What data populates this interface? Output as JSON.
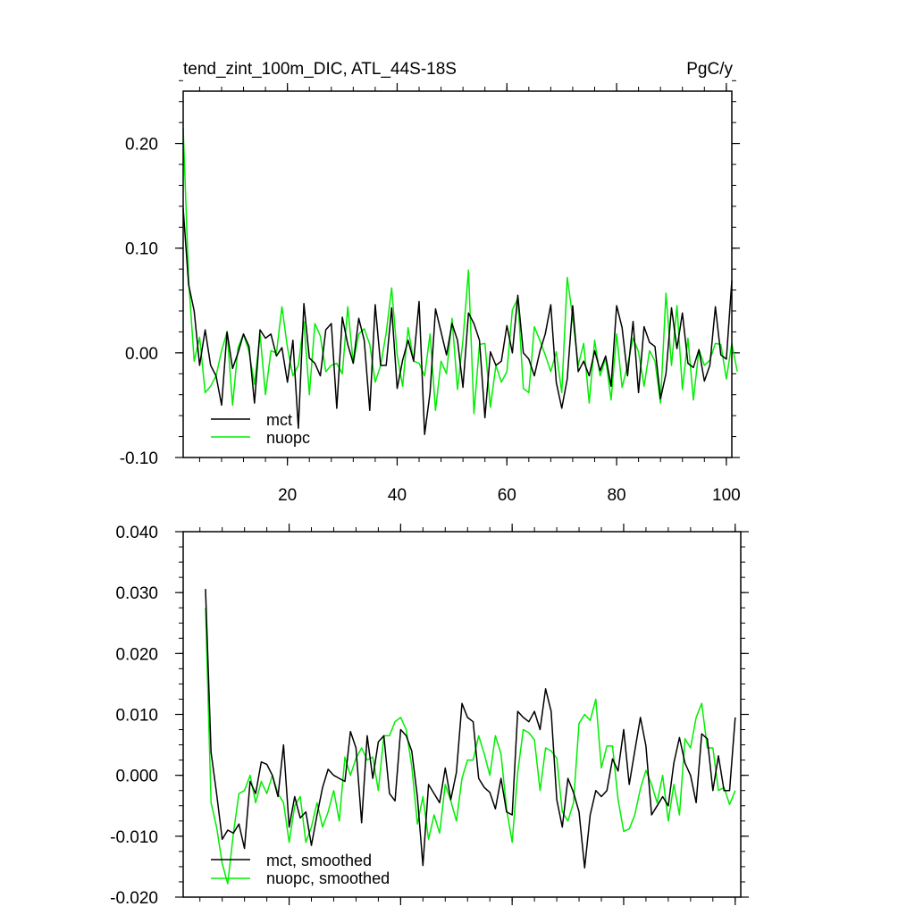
{
  "chart_data": [
    {
      "type": "line",
      "title": "tend_zint_100m_DIC, ATL_44S-18S",
      "units": "PgC/y",
      "xlim": [
        1,
        101
      ],
      "ylim": [
        -0.1,
        0.25
      ],
      "x_ticks": [
        20,
        40,
        60,
        80,
        100
      ],
      "x_tick_labels": [
        "20",
        "40",
        "60",
        "80",
        "100"
      ],
      "y_ticks": [
        -0.1,
        0.0,
        0.1,
        0.2
      ],
      "y_tick_labels": [
        "-0.10",
        "0.00",
        "0.10",
        "0.20"
      ],
      "legend_position": "bottom-left",
      "x_start": 1,
      "series": [
        {
          "name": "mct",
          "color": "#000000",
          "values": [
            0.138,
            0.065,
            0.04,
            -0.012,
            0.022,
            -0.012,
            -0.022,
            -0.05,
            0.02,
            -0.015,
            0.0,
            0.018,
            0.006,
            -0.048,
            0.022,
            0.014,
            0.018,
            -0.003,
            0.005,
            -0.028,
            0.012,
            -0.072,
            0.047,
            -0.005,
            -0.01,
            -0.022,
            0.022,
            0.028,
            -0.053,
            0.034,
            0.008,
            -0.01,
            0.033,
            0.012,
            -0.055,
            0.046,
            -0.012,
            -0.012,
            0.043,
            -0.034,
            -0.007,
            0.012,
            -0.008,
            0.049,
            -0.078,
            -0.038,
            0.042,
            0.02,
            -0.002,
            0.028,
            0.012,
            -0.033,
            0.038,
            0.028,
            0.012,
            -0.062,
            0.001,
            -0.012,
            -0.008,
            0.026,
            0.0,
            0.055,
            0.0,
            -0.006,
            -0.022,
            0.001,
            0.018,
            0.046,
            -0.028,
            -0.053,
            -0.025,
            0.045,
            -0.018,
            -0.008,
            -0.022,
            0.002,
            -0.017,
            -0.003,
            -0.032,
            0.045,
            0.024,
            -0.022,
            0.03,
            -0.038,
            0.025,
            0.01,
            0.006,
            -0.044,
            -0.02,
            0.043,
            0.004,
            0.038,
            -0.01,
            -0.014,
            0.003,
            -0.027,
            -0.012,
            0.044,
            -0.002,
            -0.006,
            0.069
          ]
        },
        {
          "name": "nuopc",
          "color": "#00ee00",
          "values": [
            0.215,
            0.07,
            -0.008,
            0.015,
            -0.038,
            -0.032,
            -0.022,
            0.002,
            0.02,
            -0.05,
            0.005,
            0.018,
            0.001,
            -0.03,
            0.018,
            -0.04,
            0.002,
            0.0,
            0.044,
            0.005,
            -0.022,
            -0.012,
            0.03,
            -0.04,
            0.028,
            0.016,
            -0.018,
            -0.012,
            -0.01,
            -0.02,
            0.044,
            -0.01,
            0.018,
            0.023,
            0.008,
            -0.028,
            -0.012,
            0.019,
            0.062,
            -0.002,
            -0.032,
            0.024,
            -0.008,
            -0.01,
            -0.022,
            0.018,
            -0.055,
            -0.008,
            -0.02,
            0.033,
            -0.035,
            0.012,
            0.079,
            -0.058,
            0.008,
            0.009,
            -0.052,
            -0.012,
            -0.028,
            -0.018,
            0.041,
            0.052,
            -0.034,
            -0.038,
            0.025,
            0.012,
            -0.002,
            -0.018,
            0.001,
            -0.038,
            0.072,
            0.034,
            -0.012,
            0.009,
            -0.048,
            0.012,
            -0.022,
            -0.005,
            -0.045,
            0.018,
            -0.033,
            -0.012,
            0.014,
            0.001,
            -0.032,
            0.002,
            -0.008,
            -0.048,
            0.057,
            -0.012,
            0.045,
            -0.035,
            0.014,
            -0.045,
            0.003,
            -0.012,
            -0.007,
            0.009,
            0.008,
            -0.025,
            0.009,
            -0.018
          ]
        }
      ]
    },
    {
      "type": "line",
      "title": "",
      "xlim": [
        1,
        101
      ],
      "ylim": [
        -0.02,
        0.04
      ],
      "x_ticks": [
        20,
        40,
        60,
        80,
        100
      ],
      "x_tick_labels": [],
      "y_ticks": [
        -0.02,
        -0.01,
        0.0,
        0.01,
        0.02,
        0.03,
        0.04
      ],
      "y_tick_labels": [
        "-0.020",
        "-0.010",
        "0.000",
        "0.010",
        "0.020",
        "0.030",
        "0.040"
      ],
      "legend_position": "bottom-left",
      "x_start": 5,
      "series": [
        {
          "name": "mct, smoothed",
          "color": "#000000",
          "values": [
            0.0306,
            0.0038,
            -0.003,
            -0.0105,
            -0.009,
            -0.0095,
            -0.008,
            -0.012,
            -0.001,
            -0.003,
            0.0022,
            0.0018,
            0.0,
            -0.0035,
            0.005,
            -0.0085,
            -0.0035,
            -0.007,
            -0.006,
            -0.0115,
            -0.0065,
            -0.002,
            0.001,
            0.0,
            -0.0005,
            -0.001,
            0.0072,
            0.0045,
            -0.0078,
            0.0065,
            -0.0005,
            0.0055,
            0.0065,
            -0.003,
            -0.0042,
            0.0075,
            0.0065,
            0.004,
            -0.0035,
            -0.0148,
            -0.0015,
            -0.003,
            -0.0045,
            0.0012,
            -0.004,
            0.0005,
            0.0118,
            0.0095,
            0.0088,
            -0.0005,
            -0.002,
            -0.0028,
            -0.0055,
            -0.0005,
            -0.006,
            -0.0065,
            0.0105,
            0.0095,
            0.0088,
            0.0105,
            0.0075,
            0.0142,
            0.0105,
            -0.004,
            -0.0085,
            -0.0005,
            -0.0028,
            -0.006,
            -0.0152,
            -0.0065,
            -0.0025,
            -0.0035,
            -0.0025,
            0.0027,
            0.0007,
            0.0075,
            -0.0015,
            0.004,
            0.0095,
            0.0048,
            -0.0065,
            -0.005,
            -0.0035,
            -0.005,
            0.002,
            0.0062,
            0.002,
            0.0,
            -0.0045,
            0.0068,
            0.006,
            -0.0025,
            0.0032,
            -0.0025,
            -0.0025,
            0.0095
          ]
        },
        {
          "name": "nuopc, smoothed",
          "color": "#00ee00",
          "values": [
            0.0275,
            -0.0045,
            -0.0085,
            -0.0145,
            -0.0178,
            -0.0095,
            -0.003,
            -0.0025,
            0.0,
            -0.0045,
            -0.001,
            -0.003,
            0.0,
            -0.003,
            -0.0045,
            -0.011,
            -0.005,
            -0.0035,
            -0.011,
            -0.0085,
            -0.0045,
            -0.0085,
            -0.006,
            -0.0025,
            -0.0075,
            0.003,
            0.0,
            0.0028,
            0.0045,
            0.0025,
            0.003,
            -0.0025,
            0.0065,
            0.0065,
            0.0088,
            0.0095,
            0.0075,
            0.0015,
            -0.008,
            -0.0035,
            -0.0105,
            -0.0065,
            -0.0095,
            -0.0015,
            -0.0042,
            -0.0075,
            -0.0005,
            0.0025,
            0.0025,
            0.0065,
            0.0035,
            0.0,
            0.0065,
            0.0035,
            -0.0055,
            -0.011,
            0.0005,
            0.0075,
            0.007,
            0.0058,
            -0.0025,
            0.0045,
            0.004,
            0.0028,
            -0.006,
            -0.0075,
            -0.0045,
            0.0085,
            0.01,
            0.009,
            0.0125,
            0.0012,
            0.0048,
            0.0048,
            -0.004,
            -0.0092,
            -0.0088,
            -0.0065,
            -0.0022,
            0.0008,
            -0.0015,
            -0.0045,
            0.0,
            -0.0075,
            -0.0015,
            -0.0065,
            0.006,
            0.0045,
            0.0095,
            0.0118,
            0.0045,
            0.0045,
            -0.0025,
            -0.002,
            -0.0048,
            -0.0025
          ]
        }
      ]
    }
  ]
}
